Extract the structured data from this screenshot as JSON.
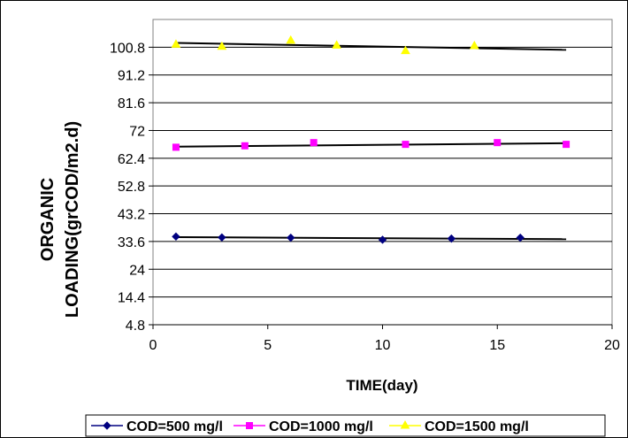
{
  "chart_data": {
    "type": "scatter",
    "title": "",
    "xlabel": "TIME(day)",
    "ylabel_lines": [
      "ORGANIC",
      "LOADING(grCOD/m2.d)"
    ],
    "xlim": [
      0,
      20
    ],
    "ylim": [
      4.8,
      110.4
    ],
    "x_ticks": [
      0,
      5,
      10,
      15,
      20
    ],
    "y_ticks": [
      4.8,
      14.4,
      24,
      33.6,
      43.2,
      52.8,
      62.4,
      72,
      81.6,
      91.2,
      100.8
    ],
    "y_tick_labels": [
      "4.8",
      "14.4",
      "24",
      "33.6",
      "43.2",
      "52.8",
      "62.4",
      "72",
      "81.6",
      "91.2",
      "100.8"
    ],
    "grid": "horizontal",
    "legend_position": "bottom",
    "series": [
      {
        "name": "COD=500 mg/l",
        "color": "#000080",
        "marker": "diamond",
        "x": [
          1,
          3,
          6,
          10,
          13,
          16
        ],
        "y": [
          35.3,
          35.0,
          34.9,
          34.2,
          34.6,
          34.9
        ],
        "trend": [
          [
            1,
            35.1
          ],
          [
            18,
            34.4
          ]
        ]
      },
      {
        "name": "COD=1000 mg/l",
        "color": "#FF00FF",
        "marker": "square",
        "x": [
          1,
          4,
          7,
          11,
          15,
          18
        ],
        "y": [
          66.2,
          66.7,
          67.8,
          67.2,
          67.8,
          67.2
        ],
        "trend": [
          [
            1,
            66.4
          ],
          [
            18,
            67.6
          ]
        ]
      },
      {
        "name": "COD=1500 mg/l",
        "color": "#FFFF00",
        "marker": "triangle",
        "x": [
          1,
          3,
          6,
          8,
          11,
          14
        ],
        "y": [
          101.7,
          101.0,
          103.1,
          101.4,
          99.5,
          101.2
        ],
        "trend": [
          [
            1,
            102.3
          ],
          [
            18,
            99.9
          ]
        ]
      }
    ]
  }
}
